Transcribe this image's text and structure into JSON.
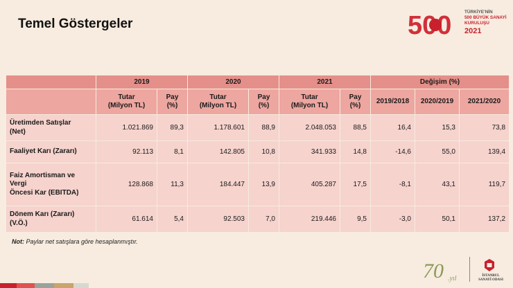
{
  "title": "Temel Göstergeler",
  "logo": {
    "number": "500",
    "line1": "TÜRKİYE'NİN",
    "line2": "500 BÜYÜK SANAYİ",
    "line3": "KURULUŞU",
    "year": "2021"
  },
  "table": {
    "years": [
      "2019",
      "2020",
      "2021"
    ],
    "change_header": "Değişim (%)",
    "amount_header_line1": "Tutar",
    "amount_header_line2": "(Milyon TL)",
    "share_header": "Pay (%)",
    "change_periods": [
      "2019/2018",
      "2020/2019",
      "2021/2020"
    ],
    "rows": [
      {
        "label_lines": [
          "Üretimden Satışlar",
          "(Net)"
        ],
        "values": [
          "1.021.869",
          "89,3",
          "1.178.601",
          "88,9",
          "2.048.053",
          "88,5",
          "16,4",
          "15,3",
          "73,8"
        ]
      },
      {
        "label_lines": [
          "Faaliyet Karı (Zararı)"
        ],
        "values": [
          "92.113",
          "8,1",
          "142.805",
          "10,8",
          "341.933",
          "14,8",
          "-14,6",
          "55,0",
          "139,4"
        ]
      },
      {
        "label_lines": [
          "Faiz Amortisman ve",
          "Vergi",
          "Öncesi Kar (EBITDA)"
        ],
        "values": [
          "128.868",
          "11,3",
          "184.447",
          "13,9",
          "405.287",
          "17,5",
          "-8,1",
          "43,1",
          "119,7"
        ]
      },
      {
        "label_lines": [
          "Dönem Karı (Zararı)",
          "(V.Ö.)"
        ],
        "values": [
          "61.614",
          "5,4",
          "92.503",
          "7,0",
          "219.446",
          "9,5",
          "-3,0",
          "50,1",
          "137,2"
        ]
      }
    ]
  },
  "note": {
    "label": "Not:",
    "text": " Paylar net satışlara göre hesaplanmıştır."
  },
  "footer": {
    "anniversary_number": "70",
    "anniversary_suffix": ".yıl",
    "org_line1": "İSTANBUL",
    "org_line2": "SANAYİ ODASI",
    "stripe_colors": [
      "#c8202d",
      "#e0524f",
      "#9aa39b",
      "#c9a46b",
      "#d7d9cf"
    ]
  }
}
